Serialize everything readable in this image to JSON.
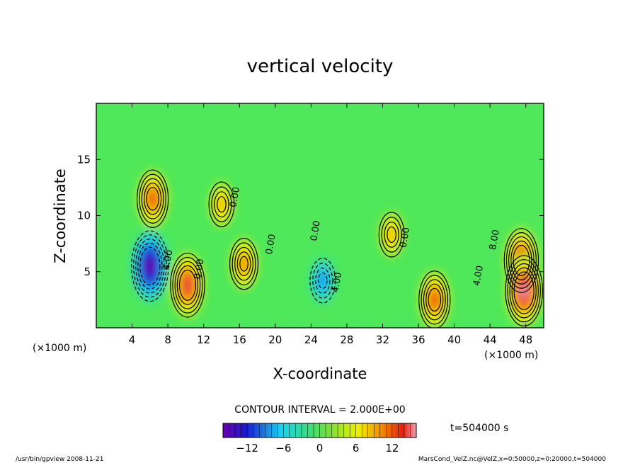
{
  "chart_data": {
    "type": "heatmap",
    "title": "vertical velocity",
    "xlabel": "X-coordinate",
    "ylabel": "Z-coordinate",
    "x_unit_label": "(×1000 m)",
    "y_unit_label": "(×1000 m)",
    "xlim": [
      0,
      50
    ],
    "ylim": [
      0,
      20
    ],
    "x_ticks": [
      4,
      8,
      12,
      16,
      20,
      24,
      28,
      32,
      36,
      40,
      44,
      48
    ],
    "y_ticks": [
      5,
      10,
      15
    ],
    "contour_interval_text": "CONTOUR INTERVAL = 2.000E+00",
    "time_text": "t=504000 s",
    "colorbar": {
      "min": -16,
      "max": 16,
      "ticks": [
        -12,
        -6,
        0,
        6,
        12
      ]
    },
    "contour_labels": [
      {
        "text": "4.00",
        "x": 8.3,
        "z": 6.0
      },
      {
        "text": "0.00",
        "x": 11.8,
        "z": 5.2
      },
      {
        "text": "0.00",
        "x": 15.8,
        "z": 11.6
      },
      {
        "text": "0.00",
        "x": 19.8,
        "z": 7.4
      },
      {
        "text": "0.00",
        "x": 24.8,
        "z": 8.6
      },
      {
        "text": "4.00",
        "x": 27.2,
        "z": 4.0
      },
      {
        "text": "0.00",
        "x": 34.8,
        "z": 8.0
      },
      {
        "text": "4.00",
        "x": 43.0,
        "z": 4.6
      },
      {
        "text": "8.00",
        "x": 44.8,
        "z": 7.8
      }
    ],
    "features": [
      {
        "x": 6.0,
        "z": 5.5,
        "w": -16,
        "note": "strong downdraft core"
      },
      {
        "x": 6.3,
        "z": 11.5,
        "w": 12
      },
      {
        "x": 10.2,
        "z": 3.8,
        "w": 14
      },
      {
        "x": 16.5,
        "z": 5.7,
        "w": 10
      },
      {
        "x": 14.0,
        "z": 11.0,
        "w": 8
      },
      {
        "x": 25.3,
        "z": 4.2,
        "w": -8
      },
      {
        "x": 33.0,
        "z": 8.3,
        "w": 8
      },
      {
        "x": 37.8,
        "z": 2.5,
        "w": 12
      },
      {
        "x": 47.5,
        "z": 6.0,
        "w": 14
      },
      {
        "x": 47.8,
        "z": 3.3,
        "w": 16
      }
    ]
  },
  "footer": {
    "left": "/usr/bin/gpview  2008-11-21",
    "right": "MarsCond_VelZ.nc@VelZ,x=0:50000,z=0:20000,t=504000"
  }
}
